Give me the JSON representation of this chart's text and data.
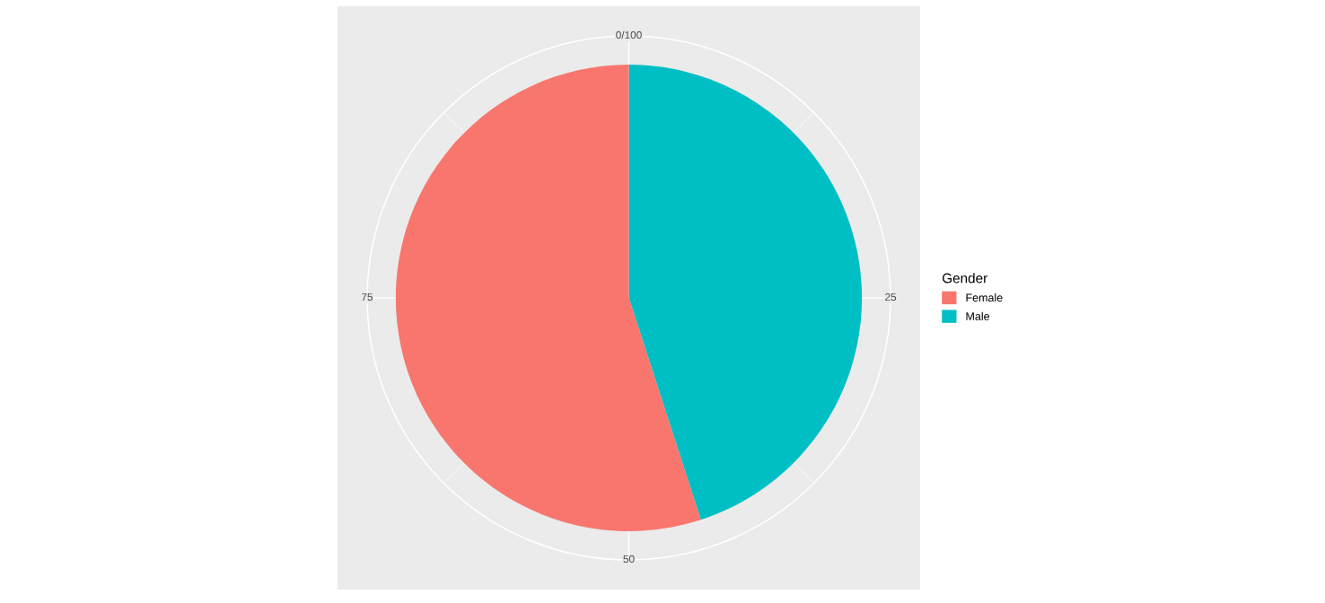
{
  "chart_data": {
    "type": "pie",
    "legend_title": "Gender",
    "legend": "right",
    "categories": [
      "Female",
      "Male"
    ],
    "values": [
      55,
      45
    ],
    "colors": [
      "#f8766d",
      "#00bfc4"
    ],
    "annotations": [
      "0/100",
      "25",
      "50",
      "75"
    ],
    "grid": true
  }
}
